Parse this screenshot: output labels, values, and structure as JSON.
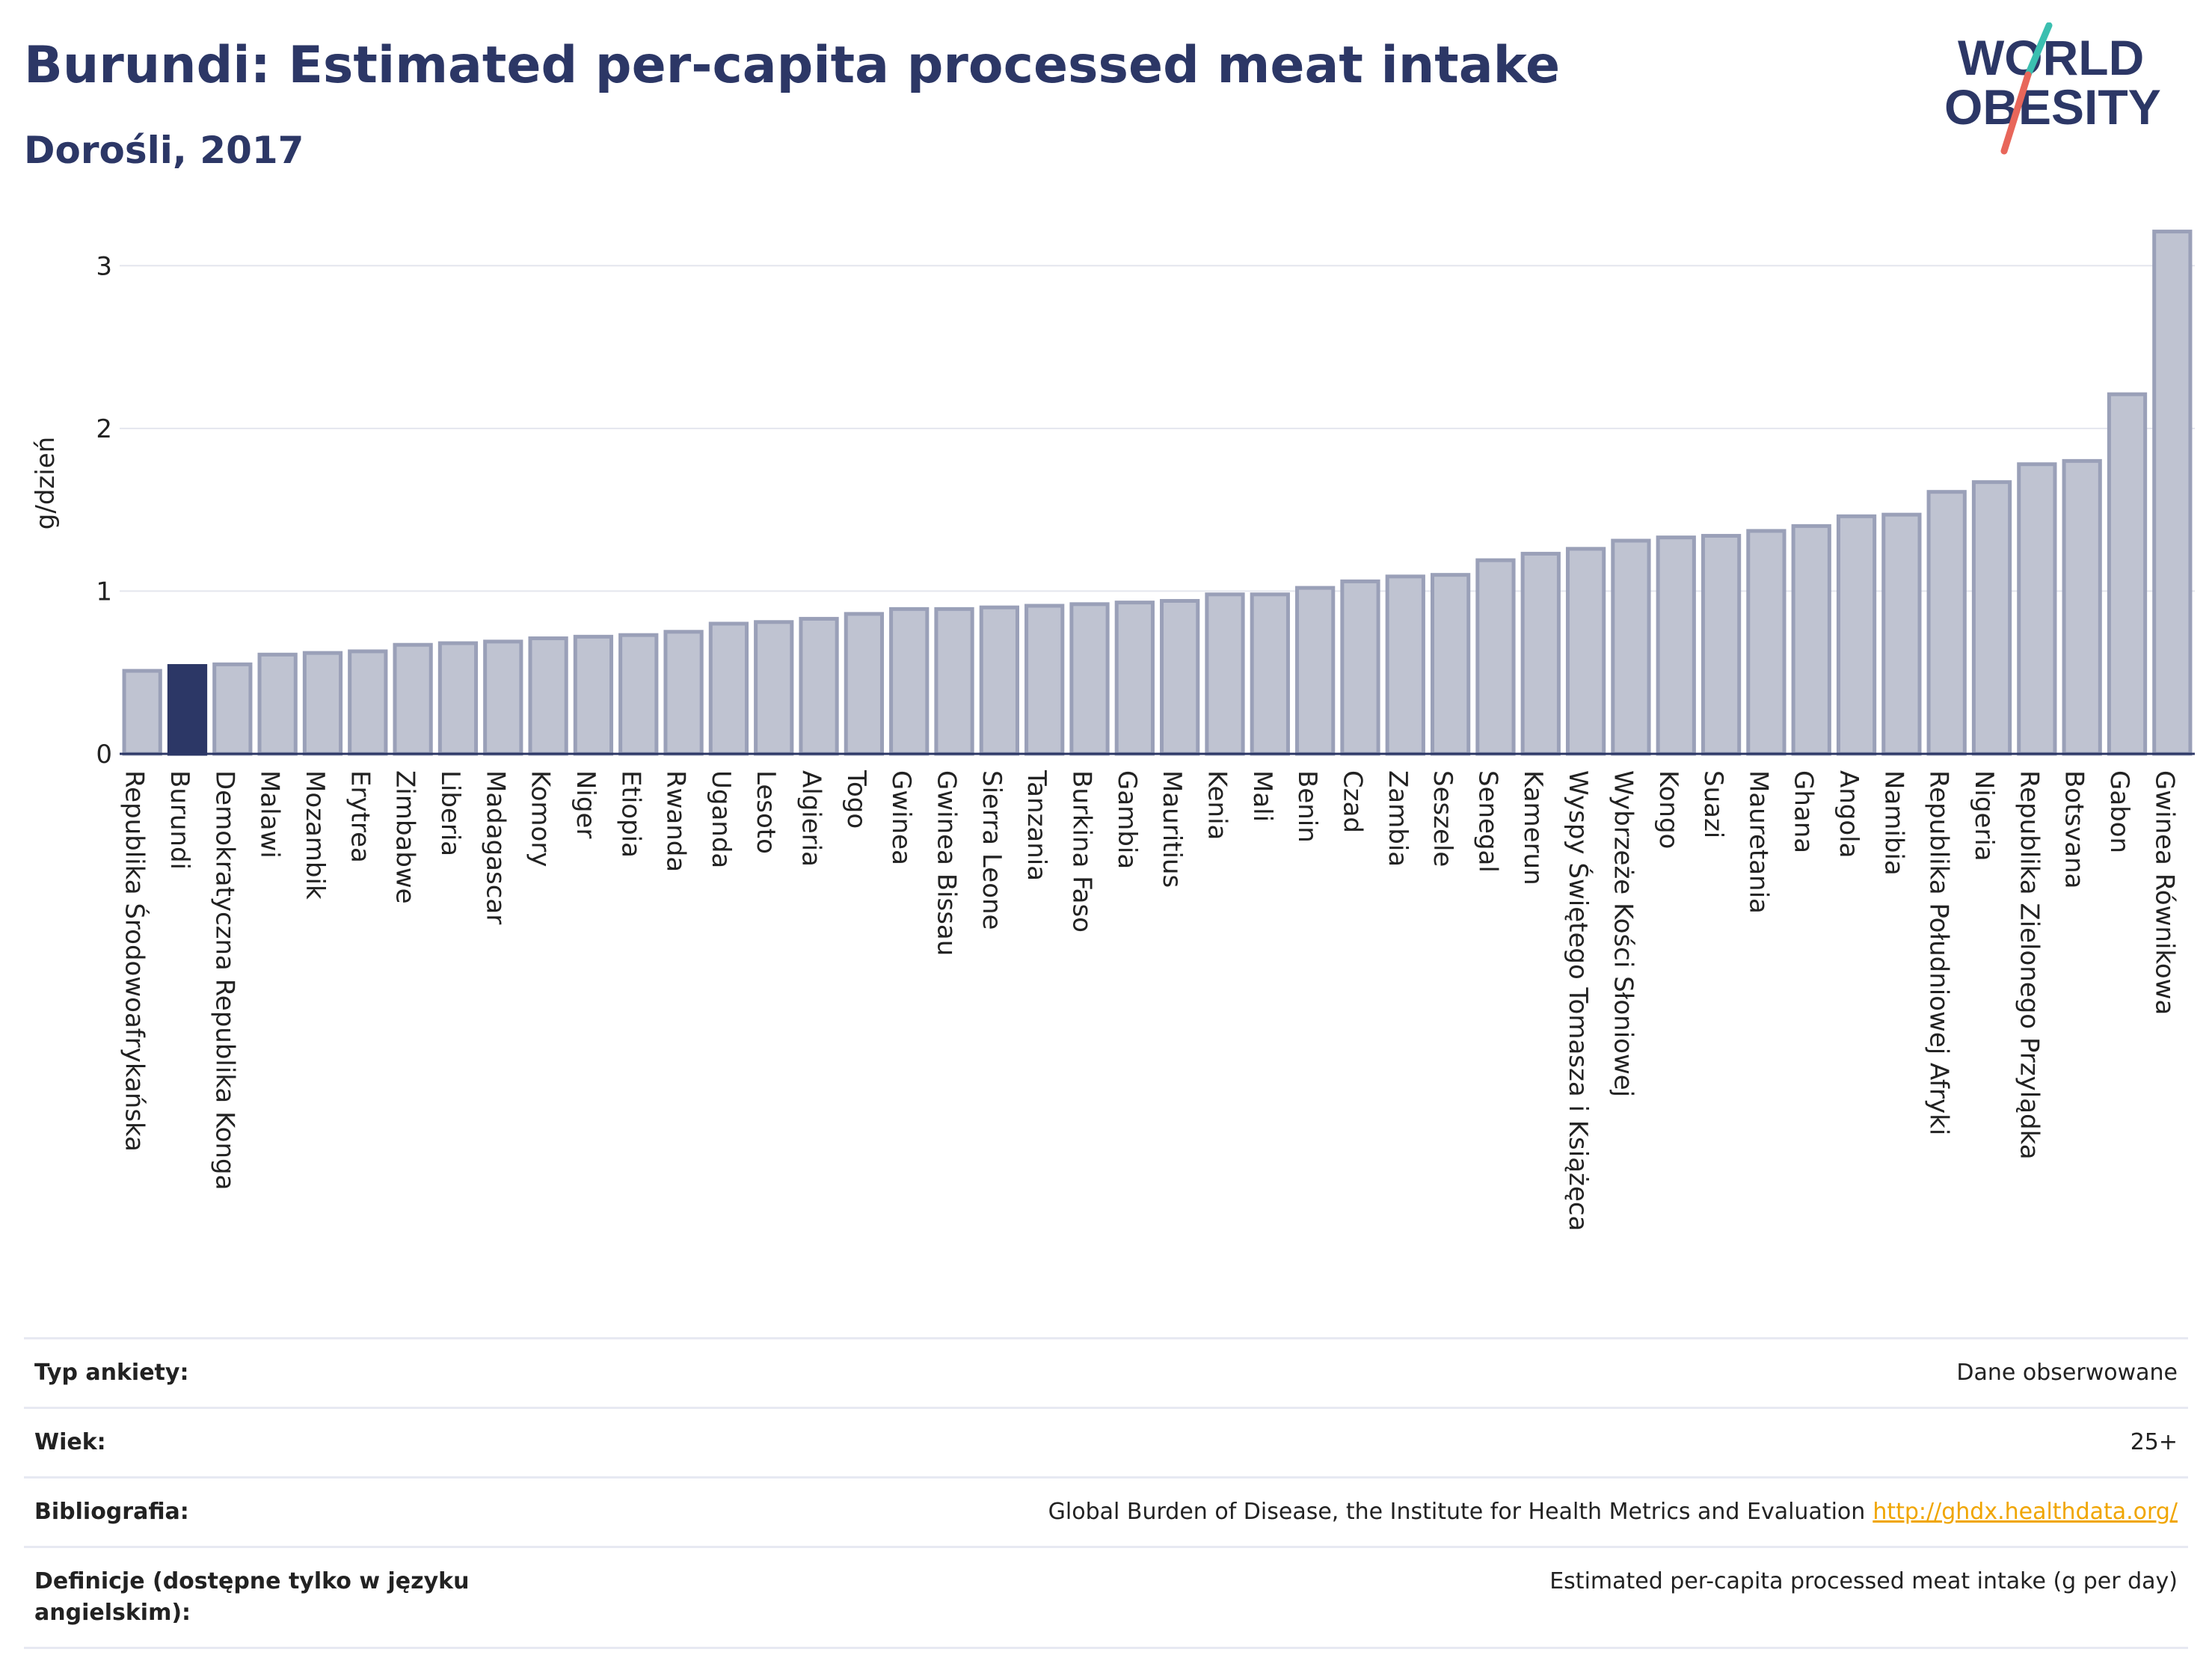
{
  "header": {
    "title": "Burundi: Estimated per-capita processed meat intake",
    "subtitle": "Dorośli, 2017"
  },
  "logo": {
    "line1": "WORLD",
    "line2": "OBESITY",
    "text_color": "#2c3766",
    "slash_top_color": "#3bbfb0",
    "slash_bottom_color": "#e8665a"
  },
  "chart_data": {
    "type": "bar",
    "title": "Burundi: Estimated per-capita processed meat intake",
    "subtitle": "Dorośli, 2017",
    "ylabel": "g/dzień",
    "xlabel": "",
    "ylim": [
      0,
      3.3
    ],
    "yticks": [
      0,
      1,
      2,
      3
    ],
    "grid": true,
    "highlight": "Burundi",
    "highlight_color": "#2c3766",
    "bar_color": "#bfc3d1",
    "bar_edge_color": "#9aa0b8",
    "categories": [
      "Republika Środowoafrykańska",
      "Burundi",
      "Demokratyczna Republika Konga",
      "Malawi",
      "Mozambik",
      "Erytrea",
      "Zimbabwe",
      "Liberia",
      "Madagascar",
      "Komory",
      "Niger",
      "Etiopia",
      "Rwanda",
      "Uganda",
      "Lesoto",
      "Algieria",
      "Togo",
      "Gwinea",
      "Gwinea Bissau",
      "Sierra Leone",
      "Tanzania",
      "Burkina Faso",
      "Gambia",
      "Mauritius",
      "Kenia",
      "Mali",
      "Benin",
      "Czad",
      "Zambia",
      "Seszele",
      "Senegal",
      "Kamerun",
      "Wyspy Świętego Tomasza i Książęca",
      "Wybrzeże Kości Słoniowej",
      "Kongo",
      "Suazi",
      "Mauretania",
      "Ghana",
      "Angola",
      "Namibia",
      "Republika Południowej Afryki",
      "Nigeria",
      "Republika Zielonego Przylądka",
      "Botsvana",
      "Gabon",
      "Gwinea Równikowa"
    ],
    "values": [
      0.51,
      0.54,
      0.55,
      0.61,
      0.62,
      0.63,
      0.67,
      0.68,
      0.69,
      0.71,
      0.72,
      0.73,
      0.75,
      0.8,
      0.81,
      0.83,
      0.86,
      0.89,
      0.89,
      0.9,
      0.91,
      0.92,
      0.93,
      0.94,
      0.98,
      0.98,
      1.02,
      1.06,
      1.09,
      1.1,
      1.19,
      1.23,
      1.26,
      1.31,
      1.33,
      1.34,
      1.37,
      1.4,
      1.46,
      1.47,
      1.61,
      1.67,
      1.78,
      1.8,
      2.21,
      3.21
    ]
  },
  "info": {
    "rows": [
      {
        "label": "Typ ankiety:",
        "value": "Dane obserwowane"
      },
      {
        "label": "Wiek:",
        "value": "25+"
      },
      {
        "label": "Bibliografia:",
        "value": "Global Burden of Disease, the Institute for Health Metrics and Evaluation",
        "link": "http://ghdx.healthdata.org/"
      },
      {
        "label": "Definicje (dostępne tylko w języku angielskim):",
        "value": "Estimated per-capita processed meat intake (g per day)"
      }
    ]
  }
}
